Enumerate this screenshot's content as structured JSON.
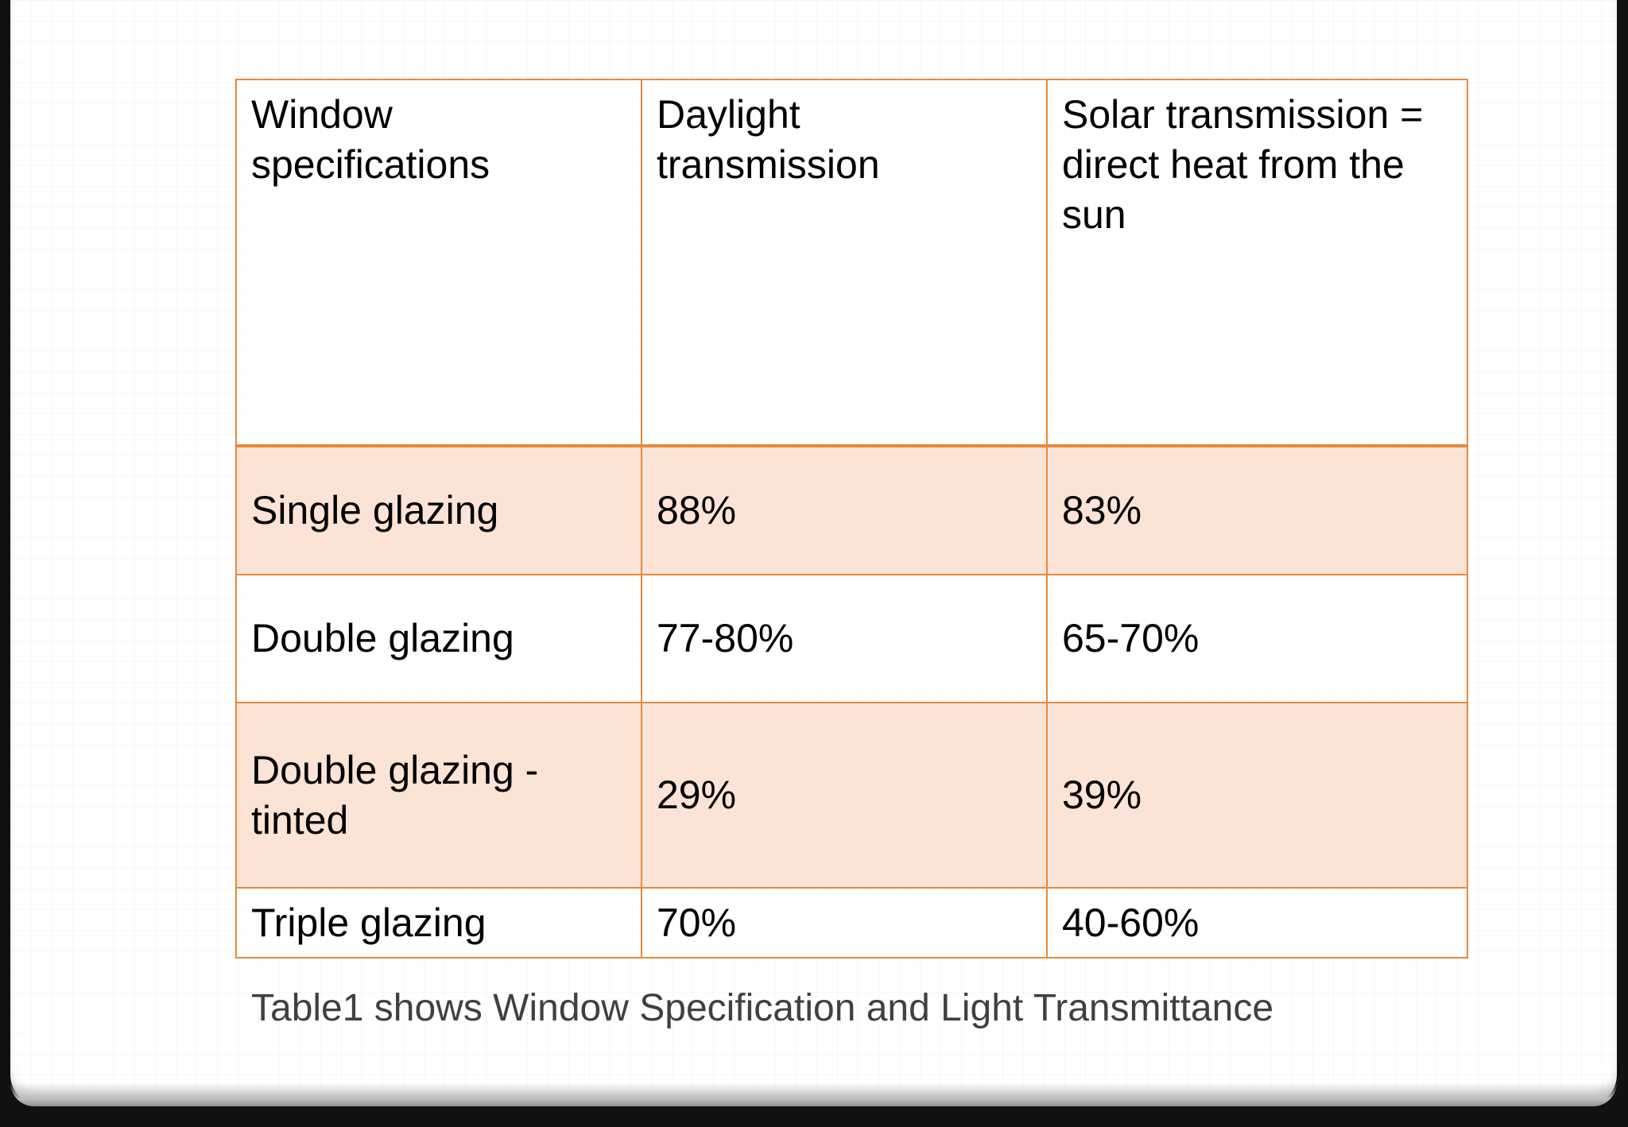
{
  "table": {
    "headers": [
      "Window specifications",
      "Daylight transmission",
      "Solar transmission = direct heat from the sun"
    ],
    "rows": [
      [
        "Single glazing",
        "88%",
        "83%"
      ],
      [
        "Double glazing",
        "77-80%",
        "65-70%"
      ],
      [
        "Double glazing - tinted",
        "29%",
        "39%"
      ],
      [
        "Triple glazing",
        "70%",
        "40-60%"
      ]
    ]
  },
  "caption": "Table1 shows Window Specification and Light Transmittance",
  "colors": {
    "border": "#e8883a",
    "shaded_row": "#fbe4d6",
    "caption_text": "#404040"
  }
}
